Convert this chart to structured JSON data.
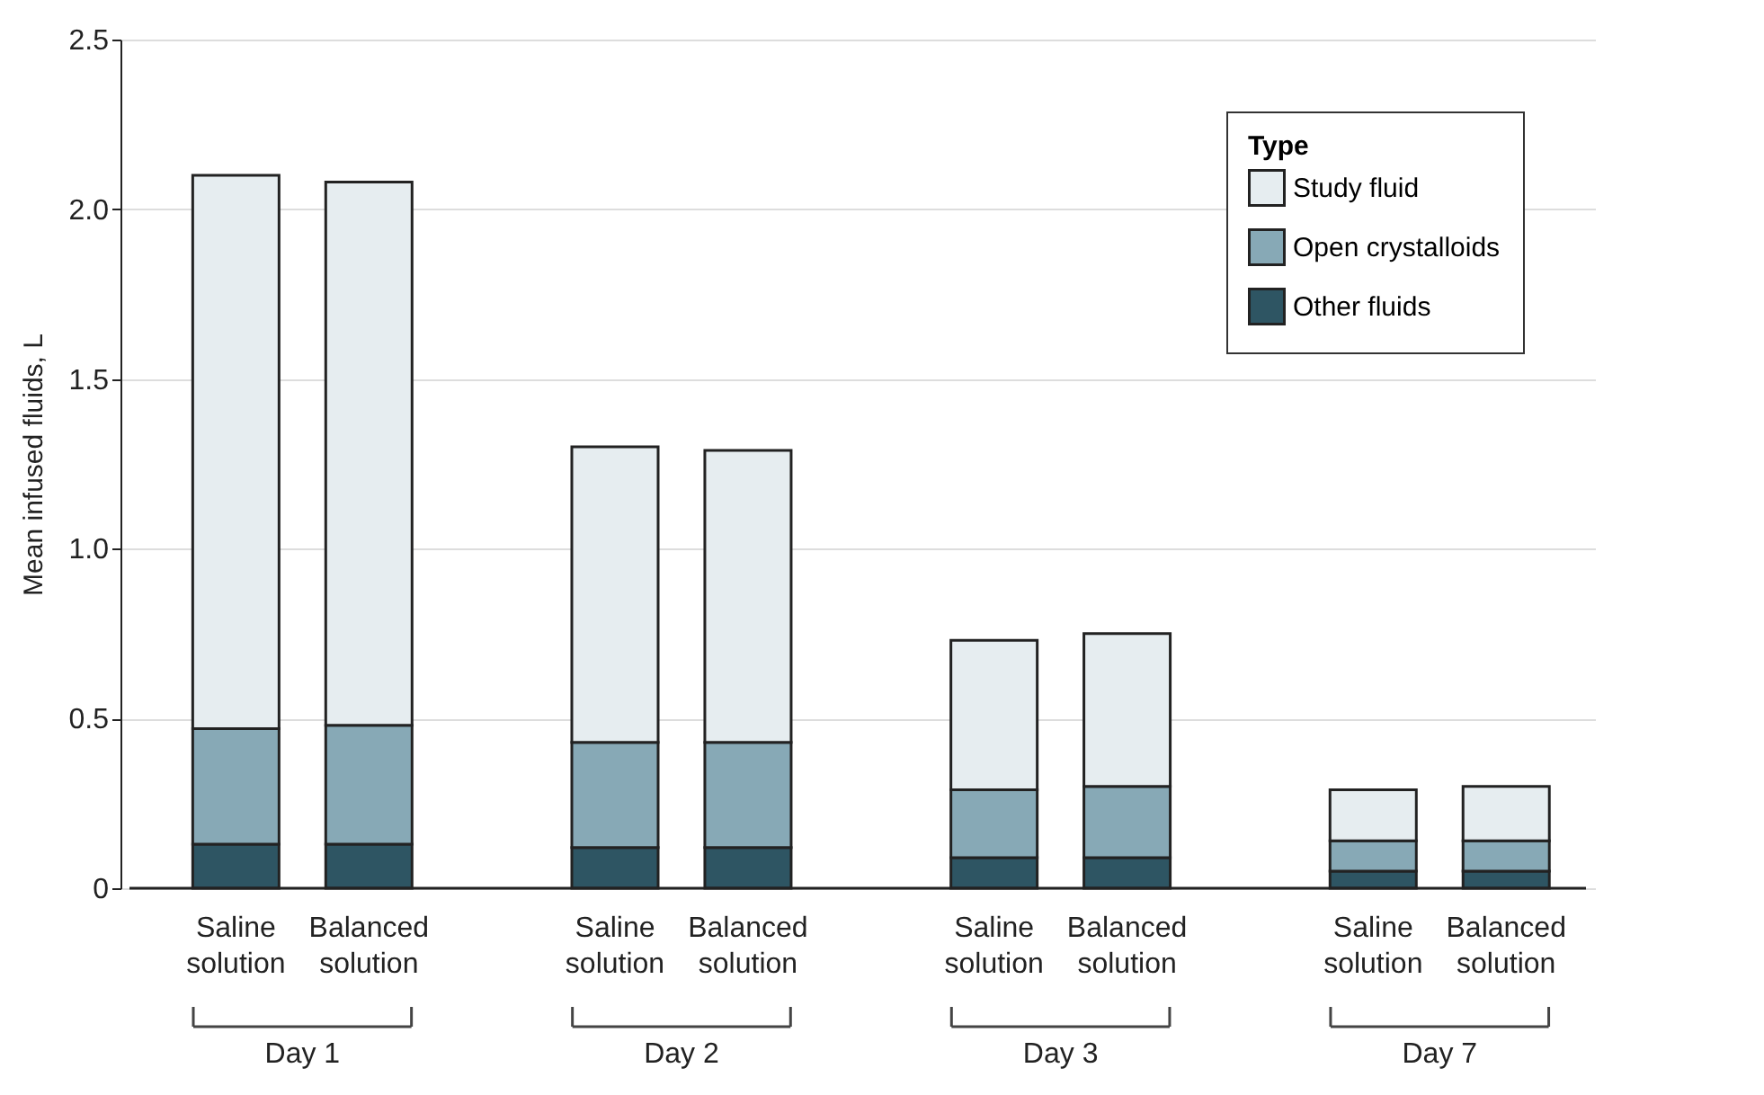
{
  "chart_data": {
    "type": "bar",
    "stacked": true,
    "categories": [
      "Saline solution",
      "Balanced solution",
      "Saline solution",
      "Balanced solution",
      "Saline solution",
      "Balanced solution",
      "Saline solution",
      "Balanced solution"
    ],
    "series": [
      {
        "name": "Other fluids",
        "color": "#2e5563",
        "values": [
          0.13,
          0.13,
          0.12,
          0.12,
          0.09,
          0.09,
          0.05,
          0.05
        ]
      },
      {
        "name": "Open crystalloids",
        "color": "#87a9b6",
        "values": [
          0.34,
          0.35,
          0.31,
          0.31,
          0.2,
          0.21,
          0.09,
          0.09
        ]
      },
      {
        "name": "Study fluid",
        "color": "#e6edf0",
        "values": [
          1.63,
          1.6,
          0.87,
          0.86,
          0.44,
          0.45,
          0.15,
          0.16
        ]
      }
    ],
    "ylabel": "Mean infused fluids, L",
    "legend_title": "Type",
    "legend": "top right",
    "annotations": [
      "Day 1",
      "Day 2",
      "Day 3",
      "Day 7"
    ],
    "ylim": [
      0,
      2.5
    ],
    "yticks": [
      {
        "value": 0,
        "label": "0"
      },
      {
        "value": 0.5,
        "label": "0.5"
      },
      {
        "value": 1,
        "label": "1.0"
      },
      {
        "value": 1.5,
        "label": "1.5"
      },
      {
        "value": 2,
        "label": "2.0"
      },
      {
        "value": 2.5,
        "label": "2.5"
      }
    ],
    "grid": "y"
  }
}
